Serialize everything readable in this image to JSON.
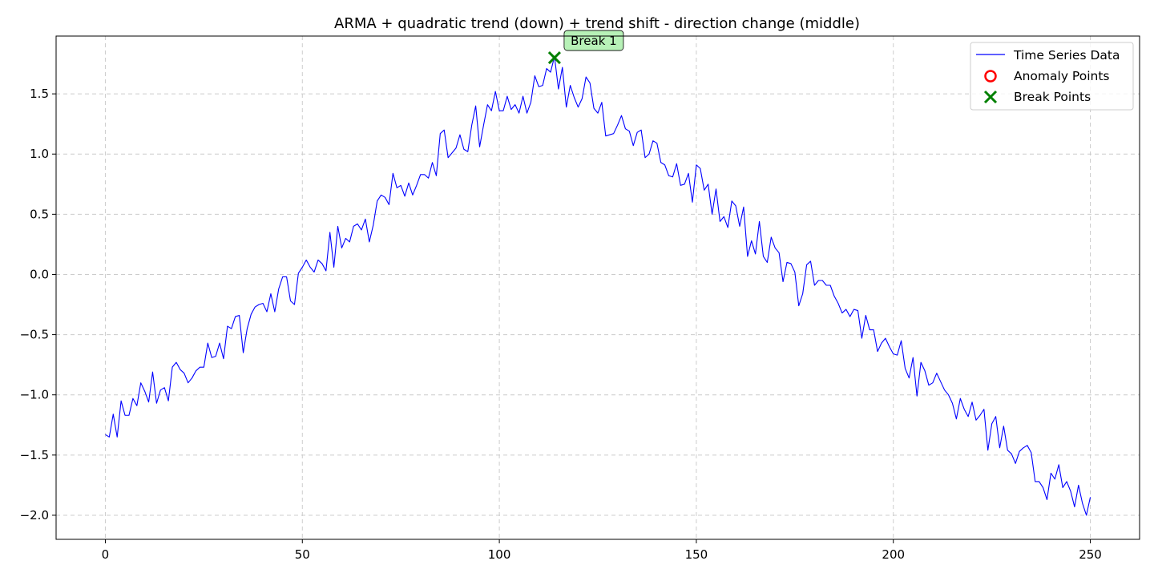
{
  "chart_data": {
    "type": "line",
    "title": "ARMA + quadratic trend (down) + trend shift - direction change (middle)",
    "xlabel": "",
    "ylabel": "",
    "xlim": [
      -12.5,
      262.5
    ],
    "ylim": [
      -2.2,
      1.98
    ],
    "xticks": [
      0,
      50,
      100,
      150,
      200,
      250
    ],
    "yticks": [
      -2.0,
      -1.5,
      -1.0,
      -0.5,
      0.0,
      0.5,
      1.0,
      1.5
    ],
    "xtick_labels": [
      "0",
      "50",
      "100",
      "150",
      "200",
      "250"
    ],
    "ytick_labels": [
      "−2.0",
      "−1.5",
      "−1.0",
      "−0.5",
      "0.0",
      "0.5",
      "1.0",
      "1.5"
    ],
    "grid": true,
    "legend_position": "top-right",
    "colors": {
      "series": "#0000ff",
      "anomaly": "#ff0000",
      "break": "#008000",
      "annotation_bg": "#b3f0b3",
      "grid": "#cccccc"
    },
    "series": [
      {
        "name": "Time Series Data",
        "x_start": 0,
        "x_step": 1,
        "values": [
          -1.33,
          -1.35,
          -1.16,
          -1.35,
          -1.05,
          -1.17,
          -1.17,
          -1.03,
          -1.09,
          -0.9,
          -0.97,
          -1.06,
          -0.81,
          -1.07,
          -0.96,
          -0.94,
          -1.05,
          -0.77,
          -0.73,
          -0.79,
          -0.82,
          -0.9,
          -0.86,
          -0.8,
          -0.77,
          -0.77,
          -0.57,
          -0.69,
          -0.68,
          -0.57,
          -0.7,
          -0.43,
          -0.45,
          -0.35,
          -0.34,
          -0.65,
          -0.45,
          -0.33,
          -0.27,
          -0.25,
          -0.24,
          -0.31,
          -0.16,
          -0.31,
          -0.12,
          -0.02,
          -0.02,
          -0.22,
          -0.25,
          0.01,
          0.06,
          0.12,
          0.06,
          0.02,
          0.12,
          0.09,
          0.03,
          0.35,
          0.06,
          0.4,
          0.22,
          0.3,
          0.27,
          0.4,
          0.42,
          0.37,
          0.46,
          0.27,
          0.41,
          0.61,
          0.66,
          0.64,
          0.58,
          0.84,
          0.72,
          0.74,
          0.65,
          0.76,
          0.66,
          0.74,
          0.83,
          0.83,
          0.8,
          0.93,
          0.82,
          1.17,
          1.2,
          0.97,
          1.01,
          1.05,
          1.16,
          1.04,
          1.02,
          1.24,
          1.4,
          1.06,
          1.24,
          1.41,
          1.36,
          1.52,
          1.36,
          1.36,
          1.48,
          1.37,
          1.41,
          1.34,
          1.48,
          1.34,
          1.43,
          1.65,
          1.56,
          1.57,
          1.71,
          1.68,
          1.81,
          1.54,
          1.72,
          1.39,
          1.57,
          1.47,
          1.39,
          1.46,
          1.64,
          1.59,
          1.38,
          1.34,
          1.43,
          1.15,
          1.16,
          1.17,
          1.24,
          1.32,
          1.21,
          1.19,
          1.07,
          1.18,
          1.2,
          0.97,
          1.0,
          1.11,
          1.09,
          0.93,
          0.91,
          0.82,
          0.81,
          0.92,
          0.74,
          0.75,
          0.84,
          0.6,
          0.91,
          0.88,
          0.7,
          0.75,
          0.5,
          0.71,
          0.44,
          0.48,
          0.39,
          0.61,
          0.57,
          0.4,
          0.56,
          0.15,
          0.28,
          0.17,
          0.44,
          0.15,
          0.1,
          0.31,
          0.22,
          0.18,
          -0.06,
          0.1,
          0.09,
          0.02,
          -0.26,
          -0.16,
          0.08,
          0.11,
          -0.09,
          -0.05,
          -0.05,
          -0.09,
          -0.09,
          -0.18,
          -0.24,
          -0.32,
          -0.29,
          -0.35,
          -0.29,
          -0.3,
          -0.53,
          -0.34,
          -0.46,
          -0.46,
          -0.64,
          -0.57,
          -0.53,
          -0.6,
          -0.66,
          -0.67,
          -0.55,
          -0.78,
          -0.86,
          -0.69,
          -1.01,
          -0.73,
          -0.8,
          -0.92,
          -0.9,
          -0.82,
          -0.89,
          -0.96,
          -1.0,
          -1.07,
          -1.2,
          -1.03,
          -1.12,
          -1.18,
          -1.06,
          -1.21,
          -1.17,
          -1.12,
          -1.46,
          -1.24,
          -1.18,
          -1.44,
          -1.26,
          -1.46,
          -1.49,
          -1.57,
          -1.47,
          -1.44,
          -1.42,
          -1.48,
          -1.72,
          -1.72,
          -1.77,
          -1.87,
          -1.65,
          -1.7,
          -1.58,
          -1.77,
          -1.72,
          -1.8,
          -1.93,
          -1.75,
          -1.9,
          -2.0,
          -1.85
        ]
      },
      {
        "name": "Anomaly Points",
        "points": []
      },
      {
        "name": "Break Points",
        "points": [
          {
            "x": 114,
            "y": 1.8
          }
        ]
      }
    ],
    "legend_entries": [
      "Time Series Data",
      "Anomaly Points",
      "Break Points"
    ],
    "annotations": [
      {
        "text": "Break 1",
        "x": 114,
        "y": 1.8
      }
    ]
  }
}
